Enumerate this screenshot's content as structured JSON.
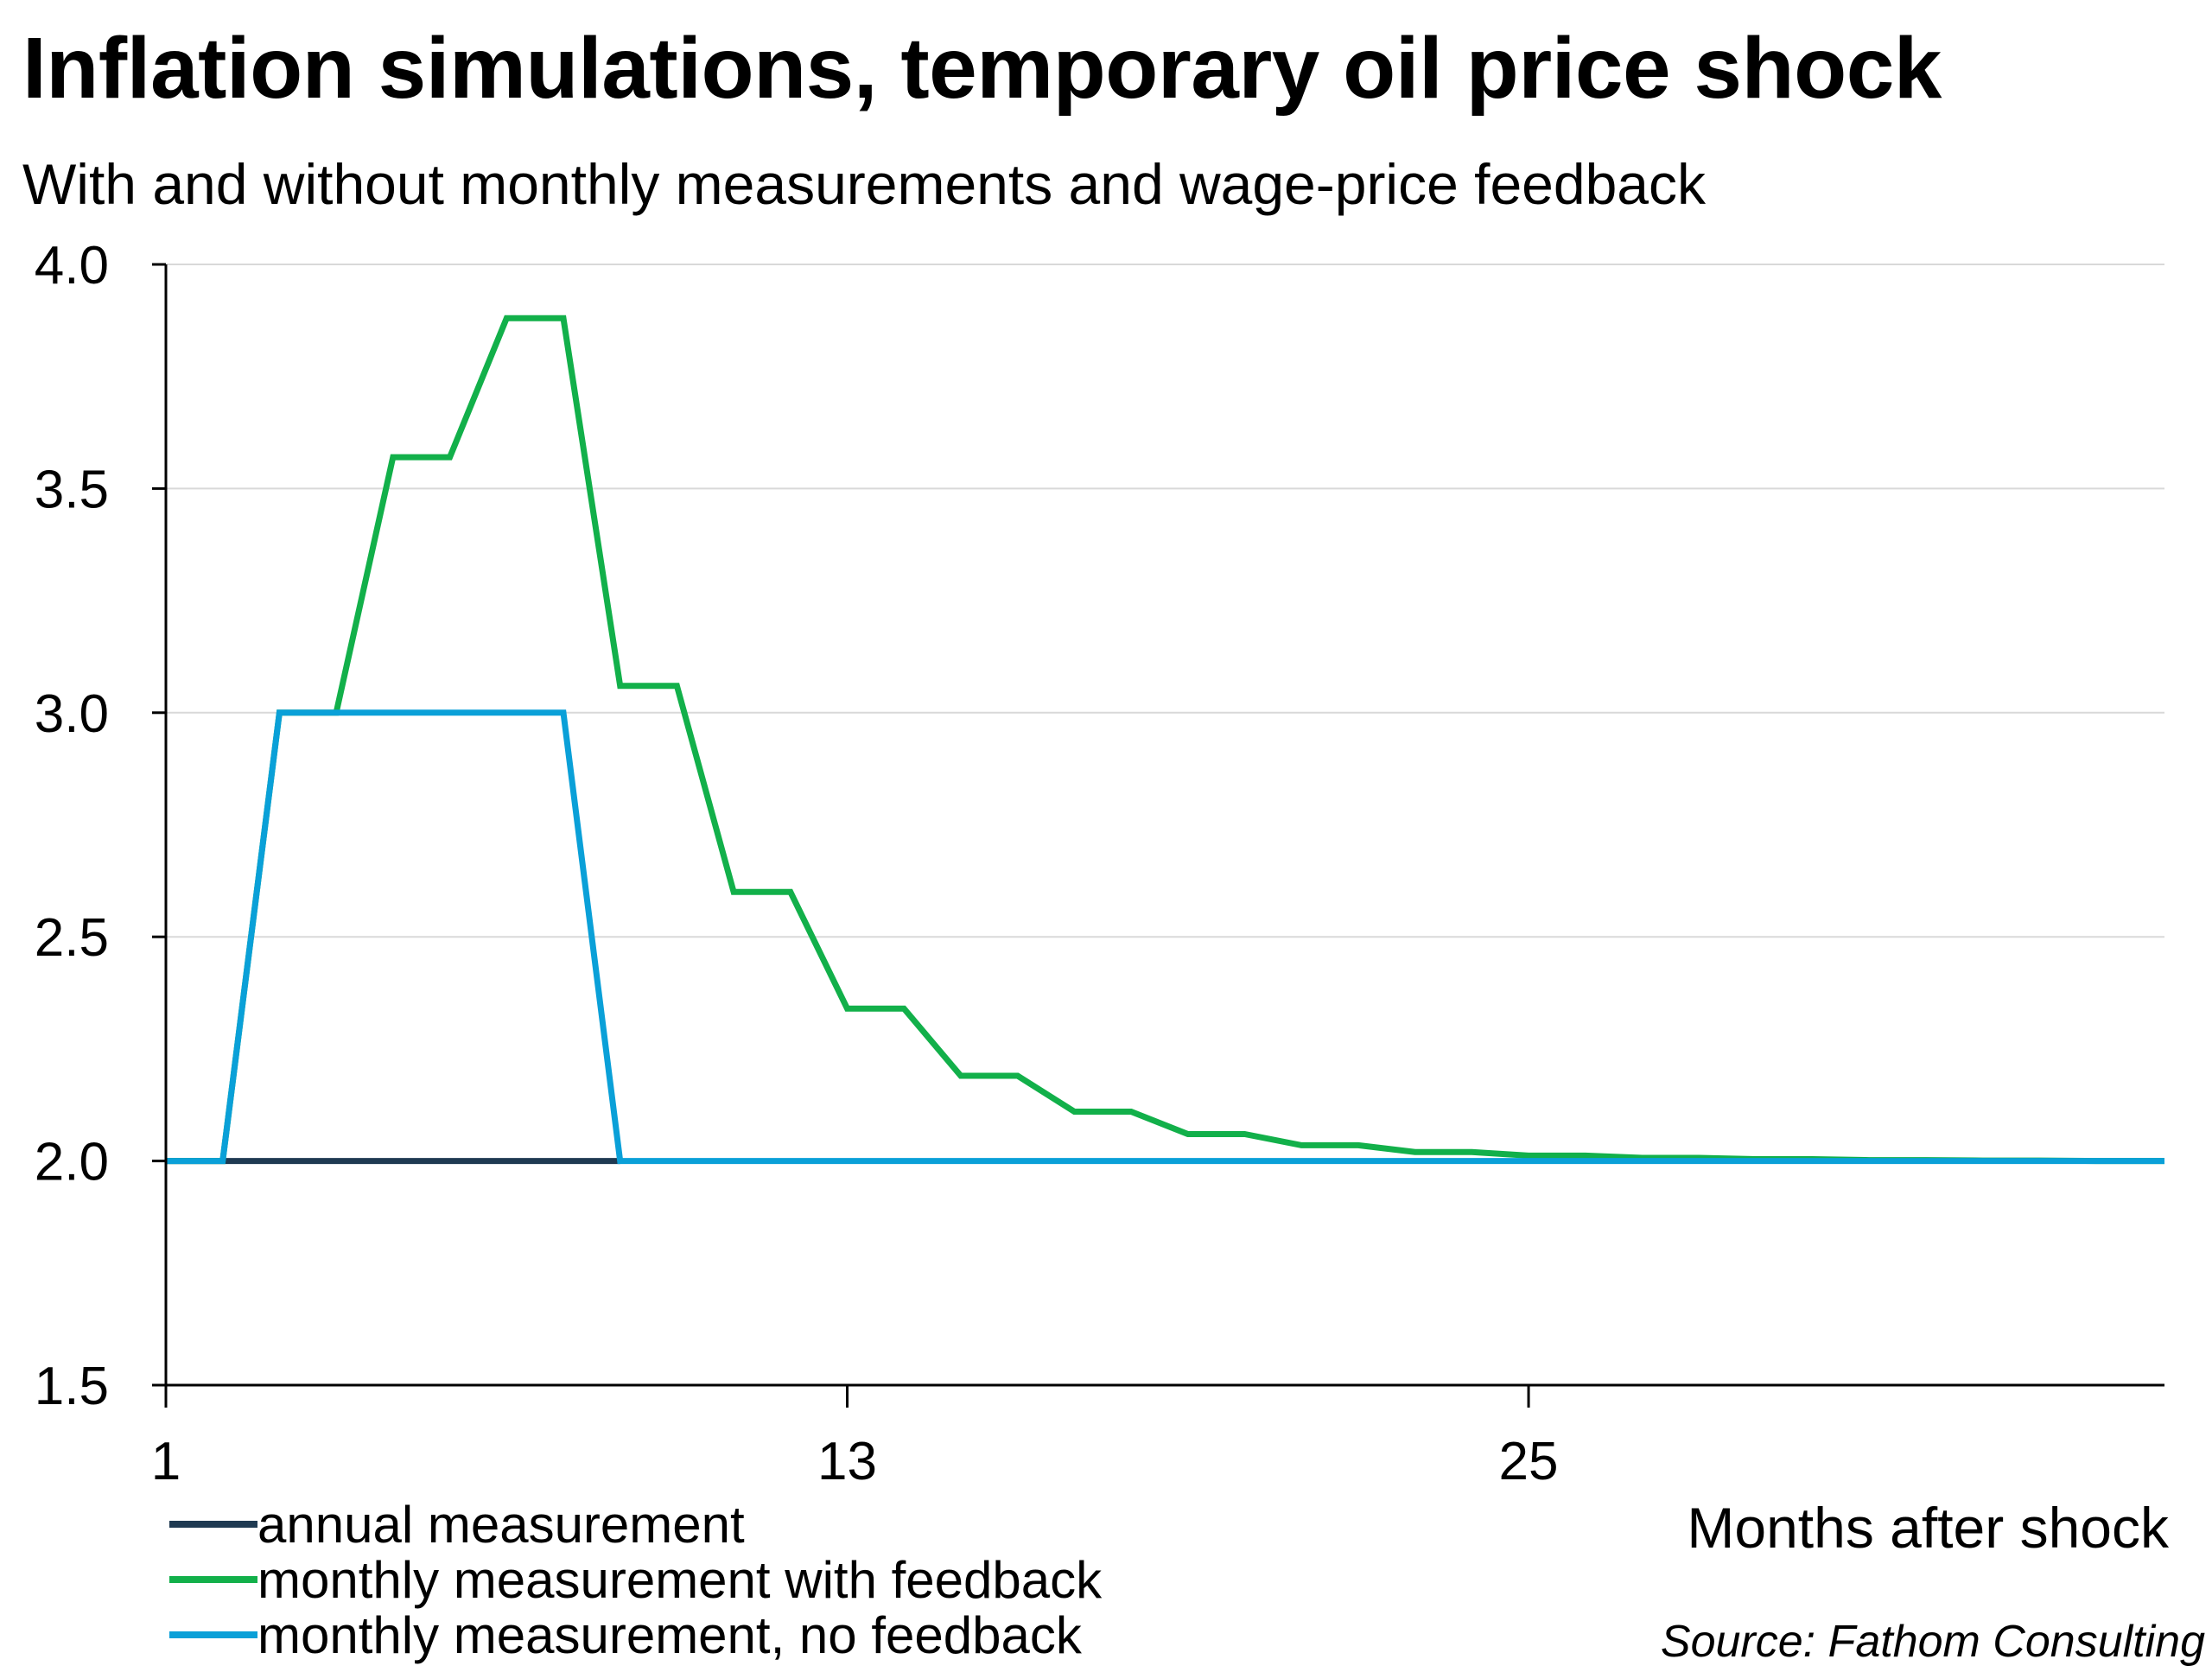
{
  "chart_data": {
    "type": "line",
    "title": "Inflation simulations, temporary oil price shock",
    "subtitle": "With and without monthly measurements and wage-price feedback",
    "xlabel": "Months after shock",
    "ylabel": "",
    "xlim": [
      1,
      36.2
    ],
    "ylim": [
      1.5,
      4.0
    ],
    "x_ticks": [
      1,
      13,
      25
    ],
    "y_ticks": [
      4.0,
      3.5,
      3.0,
      2.5,
      2.0,
      1.5
    ],
    "y_tick_labels": [
      "4.0",
      "3.5",
      "3.0",
      "2.5",
      "2.0",
      "1.5"
    ],
    "grid": true,
    "legend_position": "bottom-left",
    "source": "Source: Fathom Consulting",
    "colors": {
      "annual": "#1f3a52",
      "with_feedback": "#12b04a",
      "no_feedback": "#0aa0d8",
      "grid": "#d9d9d9",
      "axis": "#000000"
    },
    "series": [
      {
        "name": "annual measurement",
        "color": "#1f3a52",
        "x": [
          1,
          9
        ],
        "y": [
          2.0,
          2.0
        ]
      },
      {
        "name": "monthly measurement with feedback",
        "color": "#12b04a",
        "x": [
          1,
          2,
          3,
          4,
          5,
          6,
          7,
          8,
          9,
          10,
          11,
          12,
          13,
          14,
          15,
          16,
          17,
          18,
          19,
          20,
          21,
          22,
          23,
          24,
          25,
          26,
          27,
          28,
          29,
          30,
          31,
          32,
          33,
          34,
          35,
          36.2
        ],
        "y": [
          2.0,
          2.0,
          3.0,
          3.0,
          3.57,
          3.57,
          3.88,
          3.88,
          3.06,
          3.06,
          2.6,
          2.6,
          2.34,
          2.34,
          2.19,
          2.19,
          2.11,
          2.11,
          2.06,
          2.06,
          2.035,
          2.035,
          2.02,
          2.02,
          2.012,
          2.012,
          2.007,
          2.007,
          2.004,
          2.004,
          2.002,
          2.002,
          2.001,
          2.001,
          2.0,
          2.0
        ]
      },
      {
        "name": "monthly measurement, no feedback",
        "color": "#0aa0d8",
        "x": [
          1,
          2,
          3,
          4,
          5,
          6,
          7,
          8,
          9,
          36.2
        ],
        "y": [
          2.0,
          2.0,
          3.0,
          3.0,
          3.0,
          3.0,
          3.0,
          3.0,
          2.0,
          2.0
        ]
      }
    ]
  }
}
